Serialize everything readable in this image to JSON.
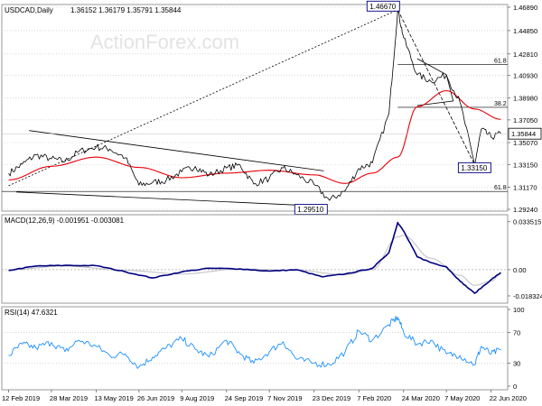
{
  "header": {
    "symbol_line": "USDCAD,Daily",
    "ohlc": "1.36152 1.36179 1.35791 1.35844"
  },
  "watermark": "ActionForex.com",
  "colors": {
    "price": "#000000",
    "ma": "#e8000b",
    "macd": "#00007f",
    "signal": "#c8c8c8",
    "rsi": "#1e90ff",
    "grid": "#c0c0c0",
    "watermark": "#e3e3e3",
    "box_border": "#00007f",
    "annotation": "#000000"
  },
  "chart_data": [
    {
      "id": "price",
      "type": "line",
      "title": "USDCAD,Daily",
      "subtitle": "1.36152 1.36179 1.35791 1.35844",
      "x_tick_labels": [
        "12 Feb 2019",
        "28 Mar 2019",
        "13 May 2019",
        "26 Jun 2019",
        "9 Aug 2019",
        "24 Sep 2019",
        "7 Nov 2019",
        "23 Dec 2019",
        "7 Feb 2020",
        "24 Mar 2020",
        "7 May 2020",
        "22 Jun 2020"
      ],
      "y_tick_labels": [
        "1.46890",
        "1.44850",
        "1.42810",
        "1.40930",
        "1.38980",
        "1.37050",
        "1.35070",
        "1.33150",
        "1.31170",
        "1.29240"
      ],
      "ylim": [
        1.2924,
        1.4689
      ],
      "grid": "horizontal dotted",
      "current_value_label": "1.35844",
      "series": [
        {
          "kind": "close",
          "x": [
            "2019-02-12",
            "2019-02-26",
            "2019-03-12",
            "2019-03-28",
            "2019-04-11",
            "2019-04-25",
            "2019-05-13",
            "2019-05-27",
            "2019-06-12",
            "2019-06-26",
            "2019-07-10",
            "2019-07-24",
            "2019-08-09",
            "2019-08-23",
            "2019-09-06",
            "2019-09-24",
            "2019-10-08",
            "2019-10-22",
            "2019-11-07",
            "2019-11-21",
            "2019-12-05",
            "2019-12-23",
            "2020-01-08",
            "2020-01-24",
            "2020-02-07",
            "2020-02-21",
            "2020-03-09",
            "2020-03-18",
            "2020-03-24",
            "2020-04-07",
            "2020-04-21",
            "2020-05-07",
            "2020-05-21",
            "2020-06-05",
            "2020-06-12",
            "2020-06-22",
            "2020-07-02"
          ],
          "values": [
            1.3237,
            1.3318,
            1.3398,
            1.3365,
            1.3342,
            1.3428,
            1.3468,
            1.345,
            1.3375,
            1.3135,
            1.3158,
            1.3178,
            1.3252,
            1.3298,
            1.3221,
            1.3285,
            1.331,
            1.3145,
            1.3194,
            1.3285,
            1.3225,
            1.3139,
            1.3002,
            1.3088,
            1.3281,
            1.333,
            1.3761,
            1.4667,
            1.4423,
            1.41,
            1.4043,
            1.4096,
            1.3859,
            1.3315,
            1.3625,
            1.3553,
            1.3584
          ]
        },
        {
          "kind": "moving_average",
          "x": [
            "2019-02-12",
            "2019-03-28",
            "2019-05-13",
            "2019-06-26",
            "2019-08-09",
            "2019-09-24",
            "2019-11-07",
            "2019-12-23",
            "2020-01-24",
            "2020-02-21",
            "2020-03-18",
            "2020-04-07",
            "2020-05-07",
            "2020-06-05",
            "2020-07-02"
          ],
          "values": [
            1.318,
            1.33,
            1.338,
            1.329,
            1.32,
            1.324,
            1.3265,
            1.3225,
            1.315,
            1.324,
            1.338,
            1.382,
            1.396,
            1.38,
            1.371
          ]
        }
      ],
      "annotations": [
        {
          "text": "1.46670",
          "x": "2020-03-18",
          "y": 1.4667,
          "boxed": true
        },
        {
          "text": "1.33150",
          "x": "2020-06-05",
          "y": 1.3315,
          "boxed": true
        },
        {
          "text": "1.29510",
          "x": "2019-12-31",
          "y": 1.2951,
          "boxed": true
        },
        {
          "text": "61.8",
          "y": 1.419,
          "level": "fibonacci"
        },
        {
          "text": "38.2",
          "y": 1.3815,
          "level": "fibonacci"
        },
        {
          "text": "61.8",
          "y": 1.308,
          "level": "fibonacci"
        }
      ],
      "trendlines": [
        {
          "style": "dotted",
          "from": {
            "x": "2019-02-12",
            "y": 1.313
          },
          "to": {
            "x": "2020-03-18",
            "y": 1.4667
          }
        },
        {
          "style": "solid",
          "from": {
            "x": "2019-03-05",
            "y": 1.3612
          },
          "to": {
            "x": "2020-01-02",
            "y": 1.326
          }
        },
        {
          "style": "solid",
          "from": {
            "x": "2019-02-20",
            "y": 1.3075
          },
          "to": {
            "x": "2019-12-31",
            "y": 1.2951
          }
        },
        {
          "style": "dashed",
          "from": {
            "x": "2020-03-18",
            "y": 1.4667
          },
          "to": {
            "x": "2020-06-05",
            "y": 1.3315
          }
        }
      ]
    },
    {
      "id": "macd",
      "type": "line",
      "title": "MACD(12,26,9) -0.001951 -0.003081",
      "y_tick_labels": [
        "0.033515",
        "0.00",
        "-0.018324"
      ],
      "ylim": [
        -0.0215,
        0.0365
      ],
      "series": [
        {
          "kind": "macd",
          "x": [
            "2019-02-12",
            "2019-03-12",
            "2019-04-11",
            "2019-05-13",
            "2019-06-12",
            "2019-07-10",
            "2019-08-09",
            "2019-09-06",
            "2019-10-08",
            "2019-11-07",
            "2019-12-05",
            "2019-12-31",
            "2020-01-24",
            "2020-02-21",
            "2020-03-09",
            "2020-03-18",
            "2020-03-24",
            "2020-04-07",
            "2020-04-21",
            "2020-05-07",
            "2020-05-21",
            "2020-06-05",
            "2020-06-22",
            "2020-07-02"
          ],
          "values": [
            -0.0005,
            0.0025,
            0.003,
            0.0028,
            -0.0015,
            -0.0058,
            -0.0015,
            0.001,
            0.0005,
            -0.001,
            0.0,
            -0.005,
            -0.003,
            0.001,
            0.012,
            0.033,
            0.027,
            0.009,
            0.005,
            0.002,
            -0.008,
            -0.0165,
            -0.007,
            -0.002
          ]
        },
        {
          "kind": "signal",
          "x": [
            "2019-02-12",
            "2019-04-11",
            "2019-06-12",
            "2019-08-09",
            "2019-10-08",
            "2019-12-05",
            "2020-01-24",
            "2020-02-21",
            "2020-03-18",
            "2020-03-24",
            "2020-04-21",
            "2020-05-21",
            "2020-06-05",
            "2020-06-22",
            "2020-07-02"
          ],
          "values": [
            0.0,
            0.0025,
            -0.0005,
            -0.003,
            0.0005,
            -0.0005,
            -0.0035,
            0.0,
            0.023,
            0.024,
            0.008,
            -0.004,
            -0.011,
            -0.008,
            -0.0031
          ]
        }
      ]
    },
    {
      "id": "rsi",
      "type": "line",
      "title": "RSI(14) 47.6321",
      "y_tick_labels": [
        "100",
        "70",
        "30",
        "0"
      ],
      "ylim": [
        0,
        100
      ],
      "levels": [
        70,
        30
      ],
      "series": [
        {
          "kind": "rsi",
          "x": [
            "2019-02-12",
            "2019-02-26",
            "2019-03-12",
            "2019-03-28",
            "2019-04-11",
            "2019-04-25",
            "2019-05-13",
            "2019-05-27",
            "2019-06-12",
            "2019-06-26",
            "2019-07-10",
            "2019-07-24",
            "2019-08-09",
            "2019-08-23",
            "2019-09-06",
            "2019-09-24",
            "2019-10-08",
            "2019-10-22",
            "2019-11-07",
            "2019-11-21",
            "2019-12-05",
            "2019-12-23",
            "2020-01-08",
            "2020-01-24",
            "2020-02-07",
            "2020-02-21",
            "2020-03-09",
            "2020-03-18",
            "2020-03-24",
            "2020-04-07",
            "2020-04-21",
            "2020-05-07",
            "2020-05-21",
            "2020-06-05",
            "2020-06-12",
            "2020-06-22",
            "2020-07-02"
          ],
          "values": [
            40,
            55,
            50,
            57,
            45,
            60,
            52,
            40,
            42,
            25,
            38,
            50,
            62,
            48,
            38,
            60,
            42,
            30,
            45,
            58,
            35,
            30,
            28,
            45,
            72,
            60,
            80,
            90,
            70,
            55,
            60,
            42,
            40,
            28,
            52,
            42,
            47.6
          ]
        }
      ]
    }
  ]
}
